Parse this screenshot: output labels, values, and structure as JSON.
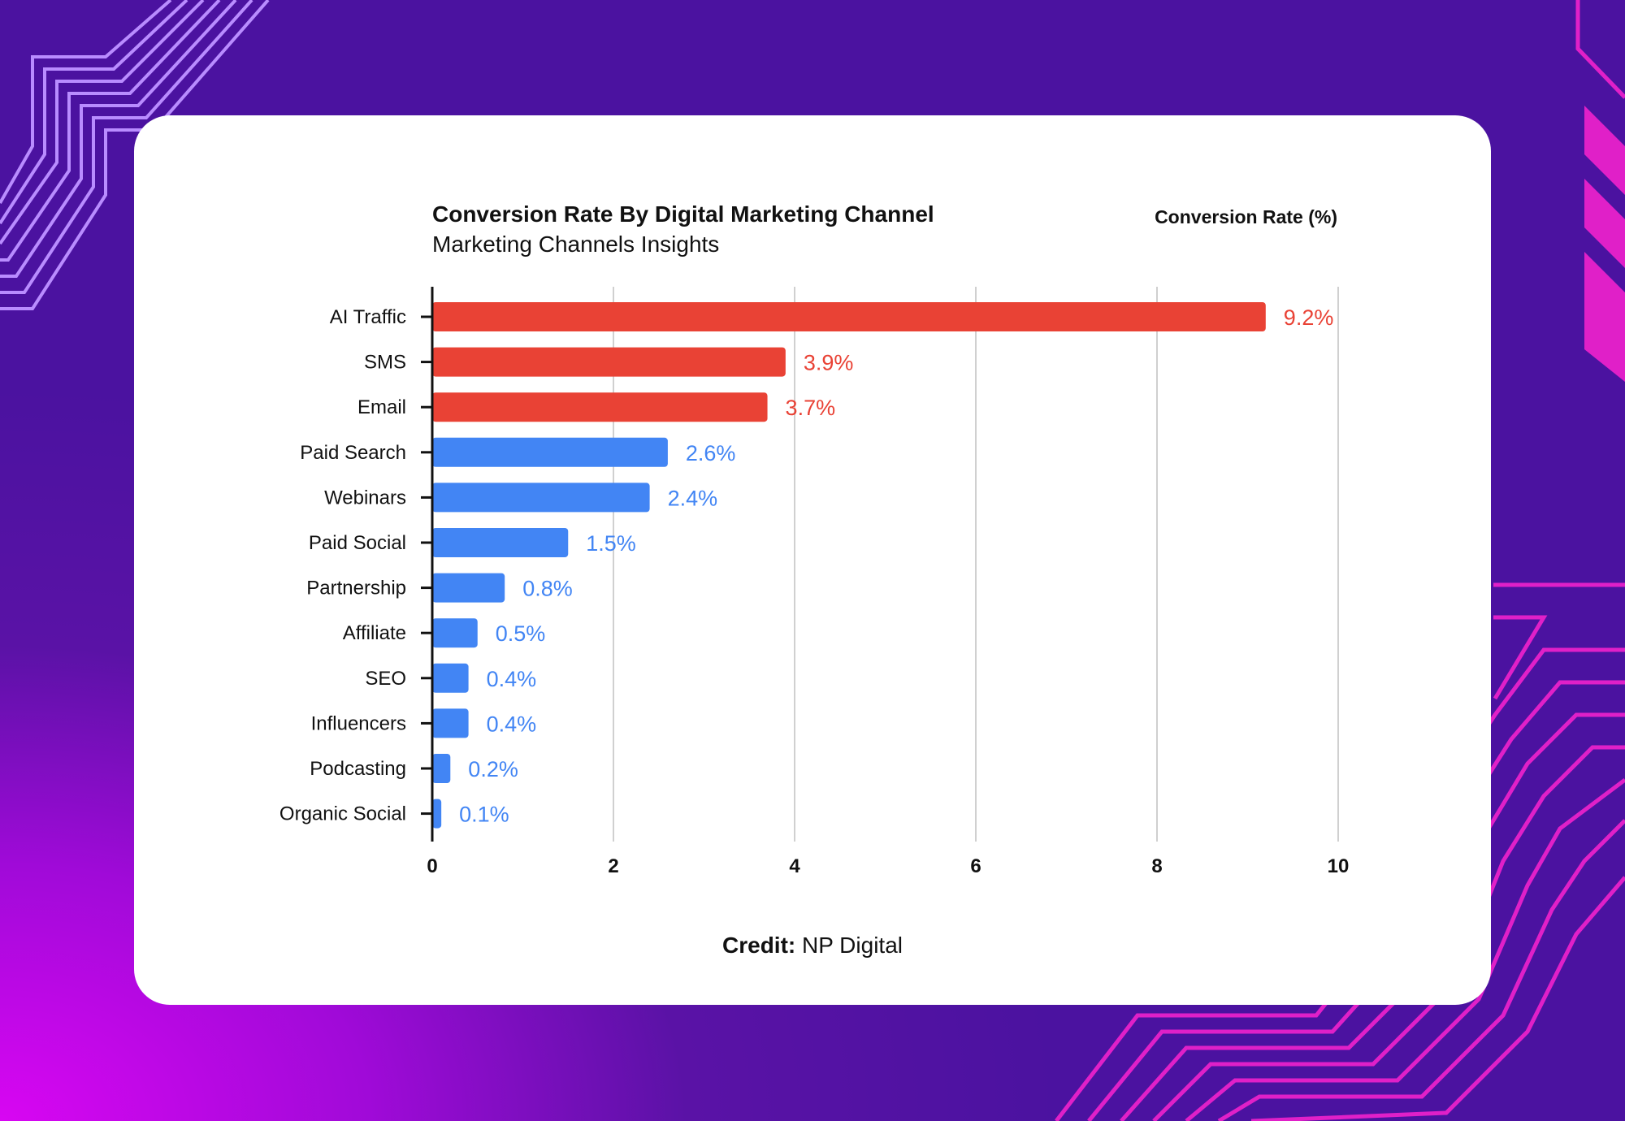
{
  "chart_data": {
    "type": "bar",
    "orientation": "horizontal",
    "title": "Conversion Rate By Digital Marketing Channel",
    "subtitle": "Marketing Channels Insights",
    "legend_label": "Conversion Rate (%)",
    "categories": [
      "AI Traffic",
      "SMS",
      "Email",
      "Paid Search",
      "Webinars",
      "Paid Social",
      "Partnership",
      "Affiliate",
      "SEO",
      "Influencers",
      "Podcasting",
      "Organic Social"
    ],
    "values": [
      9.2,
      3.9,
      3.7,
      2.6,
      2.4,
      1.5,
      0.8,
      0.5,
      0.4,
      0.4,
      0.2,
      0.1
    ],
    "data_labels": [
      "9.2%",
      "3.9%",
      "3.7%",
      "2.6%",
      "2.4%",
      "1.5%",
      "0.8%",
      "0.5%",
      "0.4%",
      "0.4%",
      "0.2%",
      "0.1%"
    ],
    "highlight_count": 3,
    "colors": {
      "highlight": "#e94235",
      "default": "#4285f4",
      "grid": "#d0d0d0"
    },
    "xlim": [
      0,
      10
    ],
    "xticks": [
      "0",
      "2",
      "4",
      "6",
      "8",
      "10"
    ],
    "grid": "vertical"
  },
  "credit": {
    "label": "Credit:",
    "source": "NP Digital"
  }
}
